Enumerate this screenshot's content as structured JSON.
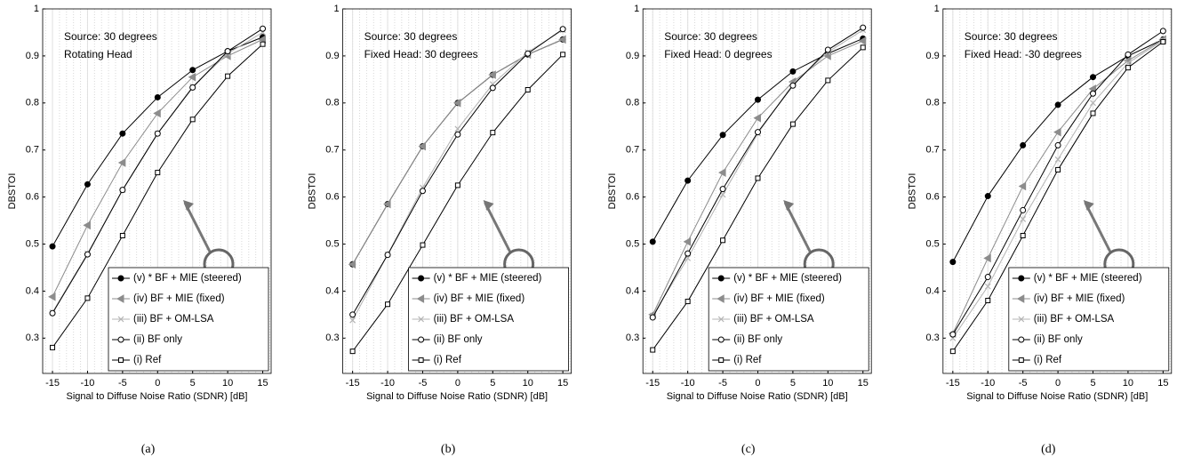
{
  "chart_data": [
    {
      "type": "line",
      "caption": "(a)",
      "annotation": [
        "Source: 30 degrees",
        "Rotating Head"
      ],
      "xlabel": "Signal to Diffuse Noise Ratio (SDNR) [dB]",
      "ylabel": "DBSTOI",
      "x": [
        -15,
        -10,
        -5,
        0,
        5,
        10,
        15
      ],
      "xlim": [
        -16.4,
        16.2
      ],
      "ylim": [
        0.225,
        1
      ],
      "xticks": [
        -15,
        -10,
        -5,
        0,
        5,
        10,
        15
      ],
      "yticks": [
        0.3,
        0.4,
        0.5,
        0.6,
        0.7,
        0.8,
        0.9,
        1
      ],
      "grid": true,
      "minor_grid_step": 1,
      "legend": "lower right",
      "series": [
        {
          "name": "(v) * BF + MIE (steered)",
          "color": "#000000",
          "marker": "filled-circle",
          "values": [
            0.495,
            0.627,
            0.735,
            0.812,
            0.87,
            0.91,
            0.94
          ]
        },
        {
          "name": "(iv) BF + MIE (fixed)",
          "color": "#8c8c8c",
          "marker": "triangle-left",
          "values": [
            0.388,
            0.54,
            0.673,
            0.778,
            0.855,
            0.9,
            0.935
          ]
        },
        {
          "name": "(iii) BF + OM-LSA",
          "color": "#b4b4b4",
          "marker": "cross",
          "values": [
            0.355,
            0.48,
            0.615,
            0.735,
            0.835,
            0.905,
            0.95
          ]
        },
        {
          "name": "(ii) BF only",
          "color": "#000000",
          "marker": "open-circle",
          "values": [
            0.353,
            0.478,
            0.615,
            0.735,
            0.833,
            0.91,
            0.958
          ]
        },
        {
          "name": "(i) Ref",
          "color": "#000000",
          "marker": "open-square",
          "values": [
            0.28,
            0.385,
            0.518,
            0.652,
            0.765,
            0.857,
            0.925
          ]
        }
      ]
    },
    {
      "type": "line",
      "caption": "(b)",
      "annotation": [
        "Source: 30 degrees",
        "Fixed Head: 30 degrees"
      ],
      "xlabel": "Signal to Diffuse Noise Ratio (SDNR) [dB]",
      "ylabel": "DBSTOI",
      "x": [
        -15,
        -10,
        -5,
        0,
        5,
        10,
        15
      ],
      "xlim": [
        -16.4,
        16.2
      ],
      "ylim": [
        0.225,
        1
      ],
      "xticks": [
        -15,
        -10,
        -5,
        0,
        5,
        10,
        15
      ],
      "yticks": [
        0.3,
        0.4,
        0.5,
        0.6,
        0.7,
        0.8,
        0.9,
        1
      ],
      "grid": true,
      "minor_grid_step": 1,
      "legend": "lower right",
      "series": [
        {
          "name": "(v) * BF + MIE (steered)",
          "color": "#000000",
          "marker": "filled-circle",
          "values": [
            0.457,
            0.585,
            0.708,
            0.8,
            0.86,
            0.903,
            0.935
          ]
        },
        {
          "name": "(iv) BF + MIE (fixed)",
          "color": "#8c8c8c",
          "marker": "triangle-left",
          "values": [
            0.457,
            0.585,
            0.708,
            0.8,
            0.86,
            0.903,
            0.935
          ]
        },
        {
          "name": "(iii) BF + OM-LSA",
          "color": "#b4b4b4",
          "marker": "cross",
          "values": [
            0.338,
            0.478,
            0.62,
            0.745,
            0.84,
            0.908,
            0.955
          ]
        },
        {
          "name": "(ii) BF only",
          "color": "#000000",
          "marker": "open-circle",
          "values": [
            0.35,
            0.477,
            0.613,
            0.733,
            0.832,
            0.905,
            0.957
          ]
        },
        {
          "name": "(i) Ref",
          "color": "#000000",
          "marker": "open-square",
          "values": [
            0.272,
            0.372,
            0.498,
            0.625,
            0.737,
            0.828,
            0.903
          ]
        }
      ]
    },
    {
      "type": "line",
      "caption": "(c)",
      "annotation": [
        "Source: 30 degrees",
        "Fixed Head: 0 degrees"
      ],
      "xlabel": "Signal to Diffuse Noise Ratio (SDNR) [dB]",
      "ylabel": "DBSTOI",
      "x": [
        -15,
        -10,
        -5,
        0,
        5,
        10,
        15
      ],
      "xlim": [
        -16.4,
        16.2
      ],
      "ylim": [
        0.225,
        1
      ],
      "xticks": [
        -15,
        -10,
        -5,
        0,
        5,
        10,
        15
      ],
      "yticks": [
        0.3,
        0.4,
        0.5,
        0.6,
        0.7,
        0.8,
        0.9,
        1
      ],
      "grid": true,
      "minor_grid_step": 1,
      "legend": "lower right",
      "series": [
        {
          "name": "(v) * BF + MIE (steered)",
          "color": "#000000",
          "marker": "filled-circle",
          "values": [
            0.505,
            0.635,
            0.732,
            0.807,
            0.867,
            0.905,
            0.937
          ]
        },
        {
          "name": "(iv) BF + MIE (fixed)",
          "color": "#8c8c8c",
          "marker": "triangle-left",
          "values": [
            0.35,
            0.505,
            0.652,
            0.768,
            0.845,
            0.9,
            0.932
          ]
        },
        {
          "name": "(iii) BF + OM-LSA",
          "color": "#b4b4b4",
          "marker": "cross",
          "values": [
            0.348,
            0.47,
            0.605,
            0.735,
            0.84,
            0.908,
            0.955
          ]
        },
        {
          "name": "(ii) BF only",
          "color": "#000000",
          "marker": "open-circle",
          "values": [
            0.344,
            0.48,
            0.617,
            0.738,
            0.837,
            0.913,
            0.96
          ]
        },
        {
          "name": "(i) Ref",
          "color": "#000000",
          "marker": "open-square",
          "values": [
            0.275,
            0.378,
            0.508,
            0.64,
            0.755,
            0.848,
            0.918
          ]
        }
      ]
    },
    {
      "type": "line",
      "caption": "(d)",
      "annotation": [
        "Source: 30 degrees",
        "Fixed Head: -30 degrees"
      ],
      "xlabel": "Signal to Diffuse Noise Ratio (SDNR) [dB]",
      "ylabel": "DBSTOI",
      "x": [
        -15,
        -10,
        -5,
        0,
        5,
        10,
        15
      ],
      "xlim": [
        -16.4,
        16.2
      ],
      "ylim": [
        0.225,
        1
      ],
      "xticks": [
        -15,
        -10,
        -5,
        0,
        5,
        10,
        15
      ],
      "yticks": [
        0.3,
        0.4,
        0.5,
        0.6,
        0.7,
        0.8,
        0.9,
        1
      ],
      "grid": true,
      "minor_grid_step": 1,
      "legend": "lower right",
      "series": [
        {
          "name": "(v) * BF + MIE (steered)",
          "color": "#000000",
          "marker": "filled-circle",
          "values": [
            0.462,
            0.602,
            0.71,
            0.796,
            0.855,
            0.9,
            0.935
          ]
        },
        {
          "name": "(iv) BF + MIE (fixed)",
          "color": "#8c8c8c",
          "marker": "triangle-left",
          "values": [
            0.31,
            0.47,
            0.623,
            0.738,
            0.83,
            0.89,
            0.935
          ]
        },
        {
          "name": "(iii) BF + OM-LSA",
          "color": "#b4b4b4",
          "marker": "cross",
          "values": [
            0.3,
            0.41,
            0.553,
            0.68,
            0.8,
            0.885,
            0.933
          ]
        },
        {
          "name": "(ii) BF only",
          "color": "#000000",
          "marker": "open-circle",
          "values": [
            0.308,
            0.43,
            0.572,
            0.71,
            0.82,
            0.903,
            0.953
          ]
        },
        {
          "name": "(i) Ref",
          "color": "#000000",
          "marker": "open-square",
          "values": [
            0.272,
            0.38,
            0.518,
            0.658,
            0.778,
            0.875,
            0.93
          ]
        }
      ]
    }
  ]
}
